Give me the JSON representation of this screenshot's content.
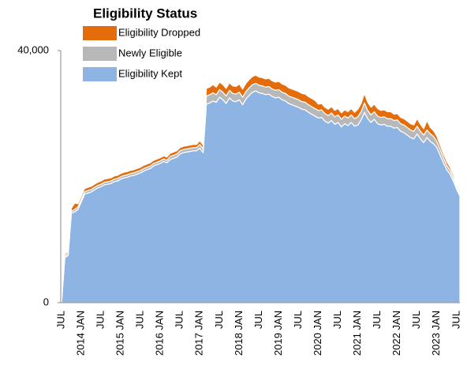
{
  "chart_data": {
    "type": "stacked-area",
    "title": "Eligibility Status",
    "categories": [
      "JUL",
      null,
      null,
      null,
      null,
      null,
      "2014 JAN",
      null,
      null,
      null,
      null,
      null,
      "JUL",
      null,
      null,
      null,
      null,
      null,
      "2015 JAN",
      null,
      null,
      null,
      null,
      null,
      "JUL",
      null,
      null,
      null,
      null,
      null,
      "2016 JAN",
      null,
      null,
      null,
      null,
      null,
      "JUL",
      null,
      null,
      null,
      null,
      null,
      "2017 JAN",
      null,
      null,
      null,
      null,
      null,
      "JUL",
      null,
      null,
      null,
      null,
      null,
      "2018 JAN",
      null,
      null,
      null,
      null,
      null,
      "JUL",
      null,
      null,
      null,
      null,
      null,
      "2019 JAN",
      null,
      null,
      null,
      null,
      null,
      "JUL",
      null,
      null,
      null,
      null,
      null,
      "2020 JAN",
      null,
      null,
      null,
      null,
      null,
      "JUL",
      null,
      null,
      null,
      null,
      null,
      "2021 JAN",
      null,
      null,
      null,
      null,
      null,
      "JUL",
      null,
      null,
      null,
      null,
      null,
      "2022 JAN",
      null,
      null,
      null,
      null,
      null,
      "JUL",
      null,
      null,
      null,
      null,
      null,
      "2023 JAN",
      null,
      null,
      null,
      null,
      null,
      "JUL",
      null
    ],
    "series": [
      {
        "name": "Eligibility Kept",
        "color": "#8db4e2",
        "values": [
          0,
          7100,
          7500,
          14200,
          14400,
          14800,
          16000,
          17200,
          17400,
          17550,
          17900,
          18200,
          18400,
          18700,
          18800,
          18900,
          19200,
          19300,
          19600,
          19800,
          19900,
          20100,
          20200,
          20400,
          20600,
          20900,
          21100,
          21300,
          21700,
          21900,
          22100,
          22400,
          22200,
          22700,
          22900,
          23100,
          23600,
          23800,
          23900,
          24000,
          24100,
          24100,
          24500,
          23800,
          31500,
          31700,
          32000,
          31800,
          32600,
          32200,
          31600,
          32500,
          32000,
          31900,
          32200,
          31400,
          32300,
          32900,
          33400,
          33600,
          33300,
          33200,
          33000,
          33100,
          32700,
          32500,
          32600,
          32200,
          32000,
          31600,
          31400,
          31200,
          31000,
          30700,
          30600,
          30200,
          29900,
          29600,
          29300,
          29400,
          28800,
          28500,
          28900,
          28300,
          28600,
          27900,
          28400,
          28100,
          28600,
          28000,
          28200,
          29000,
          30200,
          29200,
          28600,
          29100,
          28400,
          28200,
          28300,
          28000,
          28000,
          27700,
          27800,
          27200,
          27000,
          26600,
          26200,
          26000,
          26800,
          26000,
          25400,
          26200,
          25600,
          25200,
          24600,
          23400,
          22200,
          21100,
          20400,
          19300,
          18000,
          16900
        ]
      },
      {
        "name": "Newly Eligible",
        "color": "#b8b8b8",
        "values": [
          0,
          300,
          300,
          300,
          400,
          400,
          400,
          400,
          400,
          400,
          400,
          400,
          400,
          400,
          400,
          400,
          400,
          400,
          400,
          400,
          400,
          400,
          400,
          400,
          400,
          400,
          400,
          400,
          400,
          400,
          400,
          400,
          400,
          500,
          500,
          500,
          500,
          500,
          500,
          500,
          500,
          500,
          600,
          600,
          1300,
          1300,
          1300,
          1200,
          1200,
          1200,
          1200,
          1200,
          1200,
          1200,
          1200,
          1200,
          1200,
          1200,
          1200,
          1200,
          1200,
          1200,
          1200,
          1200,
          1200,
          1200,
          1200,
          1200,
          1200,
          1200,
          1200,
          1200,
          1200,
          1200,
          1200,
          1200,
          1200,
          1200,
          1200,
          1200,
          1200,
          1200,
          1200,
          1200,
          1200,
          1200,
          1200,
          1200,
          1200,
          1200,
          1300,
          1300,
          1500,
          1300,
          1200,
          1200,
          1200,
          1200,
          1200,
          1200,
          1200,
          1200,
          1200,
          1200,
          1200,
          1200,
          1200,
          1200,
          1200,
          1200,
          1200,
          1200,
          1200,
          1200,
          1000,
          900,
          800,
          700,
          600,
          500,
          400,
          300
        ]
      },
      {
        "name": "Eligibility Dropped",
        "color": "#e46c0a",
        "values": [
          0,
          300,
          300,
          500,
          1000,
          500,
          500,
          500,
          500,
          500,
          500,
          500,
          500,
          500,
          500,
          500,
          500,
          500,
          500,
          500,
          500,
          500,
          500,
          500,
          500,
          500,
          500,
          500,
          500,
          500,
          500,
          500,
          500,
          500,
          500,
          500,
          500,
          500,
          500,
          500,
          500,
          500,
          600,
          600,
          1200,
          1200,
          1300,
          1200,
          1200,
          1200,
          1200,
          1200,
          1200,
          1200,
          1300,
          1300,
          1300,
          1300,
          1300,
          1300,
          1300,
          1300,
          1300,
          1300,
          1300,
          1300,
          1300,
          1300,
          1300,
          1300,
          1300,
          1300,
          1300,
          1300,
          1300,
          1300,
          1300,
          1300,
          1000,
          1000,
          1000,
          1000,
          1000,
          1000,
          1000,
          1000,
          1000,
          1000,
          1000,
          1000,
          1200,
          1300,
          1500,
          1300,
          1200,
          1200,
          1200,
          1100,
          1100,
          1100,
          1100,
          1000,
          1000,
          1000,
          1000,
          1000,
          1000,
          1000,
          1200,
          1100,
          1000,
          1500,
          1000,
          900,
          800,
          700,
          600,
          600,
          500,
          500,
          400,
          400
        ]
      }
    ],
    "ylim": [
      0,
      40000
    ],
    "yticks": [
      0,
      {
        "value": 40000,
        "label": "40,000"
      }
    ],
    "legend": "top"
  }
}
